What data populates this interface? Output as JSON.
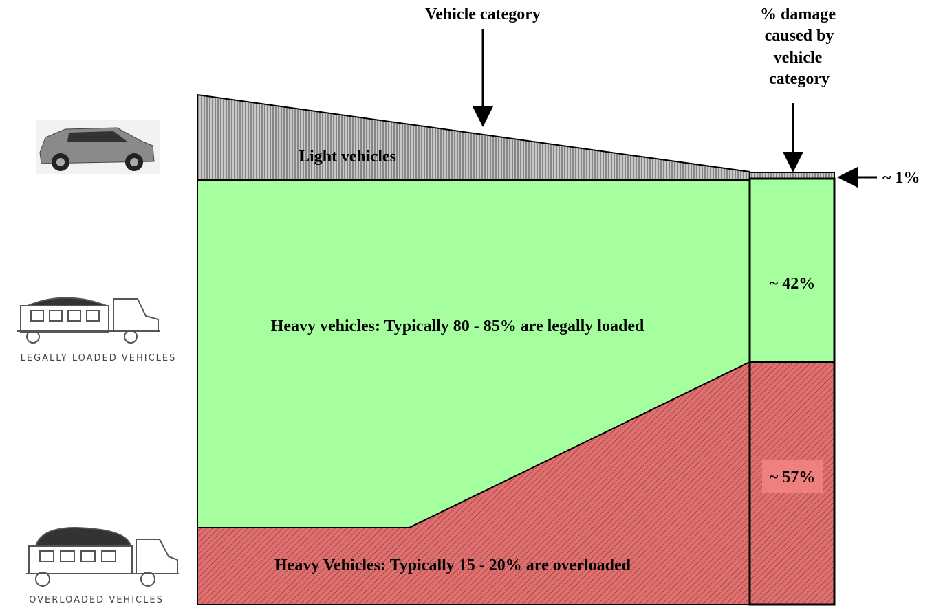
{
  "header": {
    "vehicle_category": "Vehicle category",
    "damage_lines": [
      "% damage",
      "caused by",
      "vehicle",
      "category"
    ]
  },
  "regions": {
    "light": "Light vehicles",
    "legal": "Heavy vehicles: Typically 80 - 85% are legally loaded",
    "overloaded": "Heavy Vehicles: Typically 15 - 20% are overloaded"
  },
  "damage": {
    "light": "~ 1%",
    "legal": "~ 42%",
    "overloaded": "~ 57%"
  },
  "icons": {
    "legal": "LEGALLY LOADED VEHICLES",
    "overloaded": "OVERLOADED VEHICLES"
  }
}
